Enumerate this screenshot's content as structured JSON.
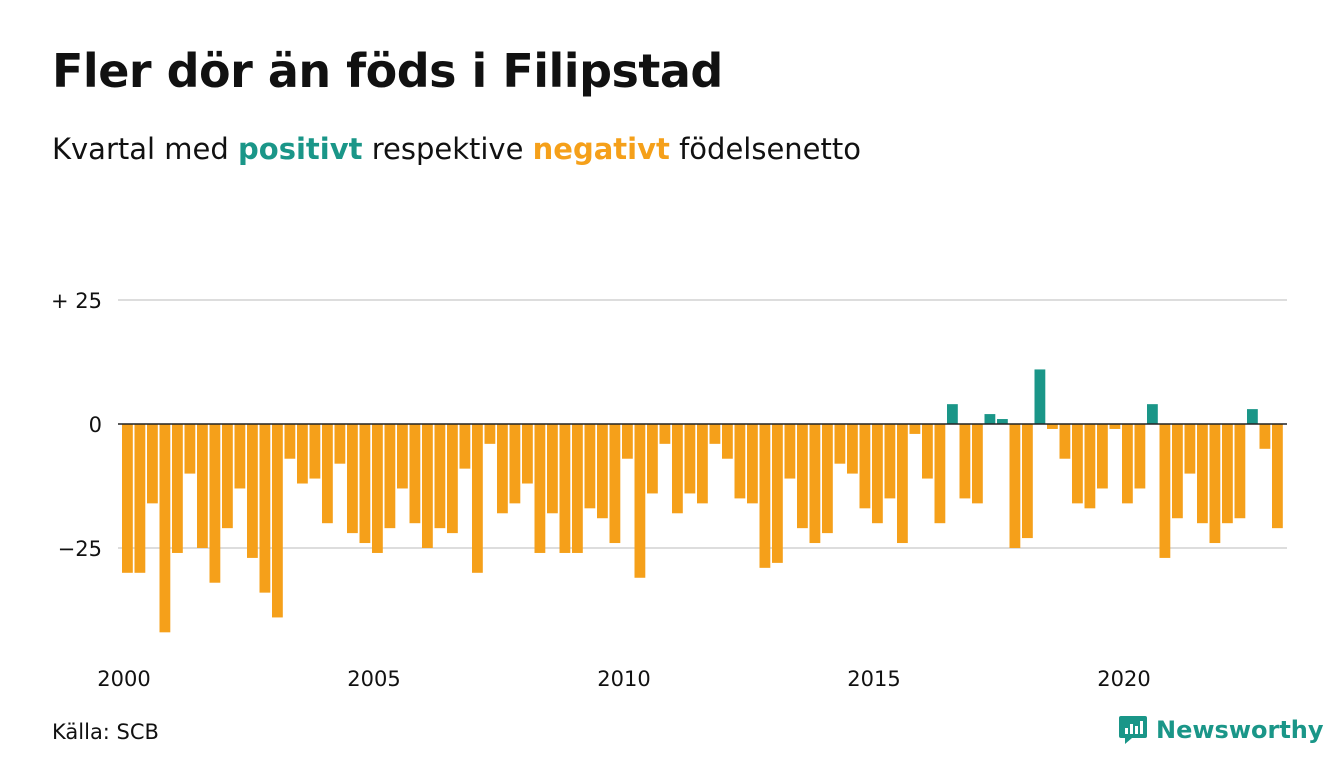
{
  "header": {
    "title": "Fler dör än föds i Filipstad",
    "subtitle_prefix": "Kvartal med ",
    "subtitle_positive": "positivt",
    "subtitle_middle": " respektive ",
    "subtitle_negative": "negativt",
    "subtitle_suffix": " födelsenetto"
  },
  "footer": {
    "source": "Källa: SCB",
    "brand": "Newsworthy",
    "brand_icon": "newsworthy-logo-icon"
  },
  "colors": {
    "positive": "#1a9688",
    "negative": "#f5a01a",
    "grid": "#dddddd",
    "zero_line": "#222222"
  },
  "chart_data": {
    "type": "bar",
    "x_start": "2000 Q1",
    "x_unit": "quarter",
    "ylim": [
      -42,
      25
    ],
    "y_ticks": [
      {
        "value": 25,
        "label": "+ 25"
      },
      {
        "value": 0,
        "label": "0"
      },
      {
        "value": -25,
        "label": "−25"
      }
    ],
    "x_ticks": [
      "2000",
      "2005",
      "2010",
      "2015",
      "2020"
    ],
    "grid": true,
    "values": [
      -30,
      -30,
      -16,
      -42,
      -26,
      -10,
      -25,
      -32,
      -21,
      -13,
      -27,
      -34,
      -39,
      -7,
      -12,
      -11,
      -20,
      -8,
      -22,
      -24,
      -26,
      -21,
      -13,
      -20,
      -25,
      -21,
      -22,
      -9,
      -30,
      -4,
      -18,
      -16,
      -12,
      -26,
      -18,
      -26,
      -26,
      -17,
      -19,
      -24,
      -7,
      -31,
      -14,
      -4,
      -18,
      -14,
      -16,
      -4,
      -7,
      -15,
      -16,
      -29,
      -28,
      -11,
      -21,
      -24,
      -22,
      -8,
      -10,
      -17,
      -20,
      -15,
      -24,
      -2,
      -11,
      -20,
      4,
      -15,
      -16,
      2,
      1,
      -25,
      -23,
      11,
      -1,
      -7,
      -16,
      -17,
      -13,
      -1,
      -16,
      -13,
      4,
      -27,
      -19,
      -10,
      -20,
      -24,
      -20,
      -19,
      3,
      -5,
      -21
    ]
  }
}
